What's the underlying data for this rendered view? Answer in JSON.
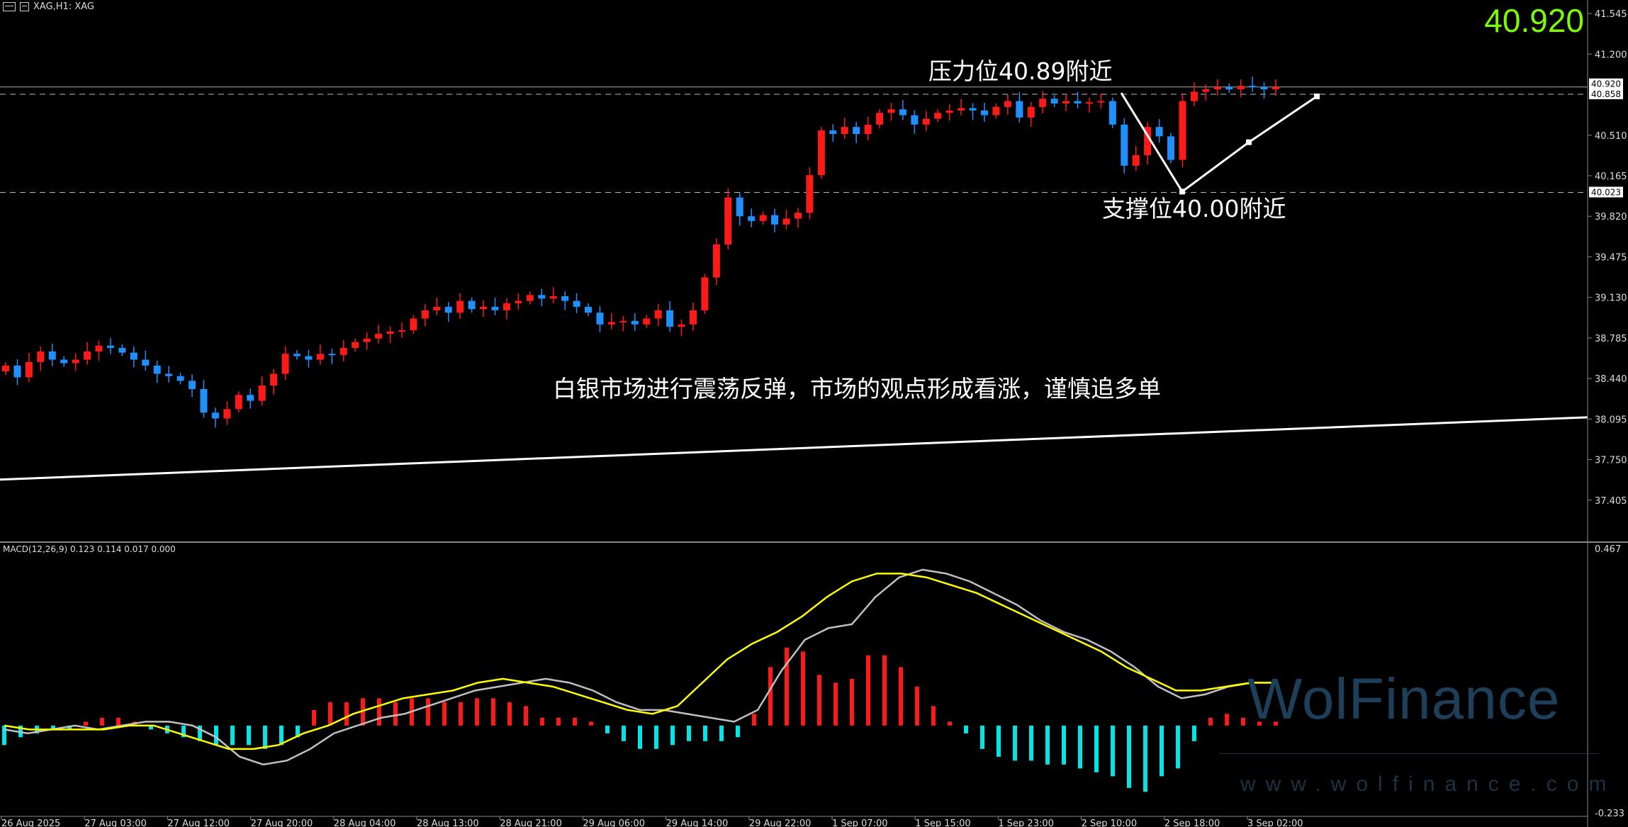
{
  "header": {
    "icon": "chart-window-icon",
    "title": "XAG,H1: XAG"
  },
  "current_price_big": "40.920",
  "annotations": {
    "resistance": "压力位40.89附近",
    "support": "支撑位40.00附近",
    "comment": "白银市场进行震荡反弹，市场的观点形成看涨，谨慎追多单"
  },
  "macd_label": "MACD(12,26,9) 0.123 0.114 0.017 0.000",
  "watermark": {
    "brand": "WolFinance",
    "url": "www.wolfinance.com"
  },
  "colors": {
    "background": "#000000",
    "bull_candle": "#ff1a1a",
    "bear_candle": "#1e90ff",
    "macd_positive": "#ff1a1a",
    "macd_negative": "#00e5e5",
    "macd_line": "#c0c0c0",
    "signal_line": "#ffff00",
    "price_highlight": "#7cfc00"
  },
  "chart_data": [
    {
      "type": "candlestick",
      "symbol": "XAG",
      "timeframe": "H1",
      "ylim": [
        37.06,
        41.66
      ],
      "y_ticks": [
        "41.545",
        "41.200",
        "40.510",
        "40.165",
        "39.820",
        "39.475",
        "39.130",
        "38.785",
        "38.440",
        "38.095",
        "37.750",
        "37.405"
      ],
      "x_ticks": [
        "26 Aug 2025",
        "27 Aug 03:00",
        "27 Aug 12:00",
        "27 Aug 20:00",
        "28 Aug 04:00",
        "28 Aug 13:00",
        "28 Aug 21:00",
        "29 Aug 06:00",
        "29 Aug 14:00",
        "29 Aug 22:00",
        "1 Sep 07:00",
        "1 Sep 15:00",
        "1 Sep 23:00",
        "2 Sep 10:00",
        "2 Sep 18:00",
        "3 Sep 02:00"
      ],
      "price_tags": [
        {
          "text": "40.920",
          "value": 40.92
        },
        {
          "text": "40.858",
          "value": 40.858
        },
        {
          "text": "40.023",
          "value": 40.023
        }
      ],
      "horizontal_levels": [
        40.92,
        40.858,
        40.023
      ],
      "trendline": {
        "start": 37.58,
        "end": 38.11
      },
      "path_projection": [
        40.87,
        40.03,
        40.45,
        40.84
      ],
      "closes": [
        38.55,
        38.45,
        38.58,
        38.67,
        38.6,
        38.57,
        38.6,
        38.67,
        38.72,
        38.7,
        38.66,
        38.6,
        38.55,
        38.48,
        38.46,
        38.42,
        38.35,
        38.15,
        38.1,
        38.18,
        38.3,
        38.25,
        38.38,
        38.48,
        38.65,
        38.63,
        38.6,
        38.65,
        38.64,
        38.7,
        38.75,
        38.78,
        38.82,
        38.84,
        38.85,
        38.95,
        39.02,
        39.05,
        39.0,
        39.1,
        39.03,
        39.05,
        39.02,
        39.08,
        39.1,
        39.15,
        39.12,
        39.14,
        39.1,
        39.05,
        39.0,
        38.9,
        38.92,
        38.93,
        38.9,
        38.95,
        39.02,
        38.88,
        38.9,
        39.02,
        39.3,
        39.58,
        39.98,
        39.82,
        39.78,
        39.83,
        39.75,
        39.8,
        39.85,
        40.17,
        40.55,
        40.52,
        40.58,
        40.52,
        40.6,
        40.7,
        40.73,
        40.68,
        40.6,
        40.65,
        40.7,
        40.72,
        40.74,
        40.72,
        40.68,
        40.75,
        40.8,
        40.66,
        40.75,
        40.82,
        40.78,
        40.8,
        40.78,
        40.79,
        40.8,
        40.6,
        40.25,
        40.34,
        40.58,
        40.5,
        40.3,
        40.8,
        40.88,
        40.9,
        40.92,
        40.9,
        40.93,
        40.92,
        40.9,
        40.92
      ]
    },
    {
      "type": "macd",
      "params": "12,26,9",
      "values": {
        "macd": 0.123,
        "signal": 0.114,
        "histogram": 0.017
      },
      "ylim": [
        -0.233,
        0.467
      ],
      "y_ticks": [
        "0.467",
        "-0.233"
      ],
      "histogram": [
        -0.05,
        -0.03,
        -0.02,
        -0.01,
        -0.01,
        0.01,
        0.02,
        0.02,
        0.01,
        -0.01,
        -0.02,
        -0.03,
        -0.04,
        -0.05,
        -0.05,
        -0.05,
        -0.06,
        -0.05,
        -0.03,
        0.04,
        0.06,
        0.06,
        0.07,
        0.07,
        0.06,
        0.07,
        0.07,
        0.06,
        0.06,
        0.07,
        0.07,
        0.06,
        0.05,
        0.02,
        0.02,
        0.02,
        0.01,
        -0.02,
        -0.04,
        -0.06,
        -0.06,
        -0.05,
        -0.04,
        -0.04,
        -0.04,
        -0.03,
        0.03,
        0.15,
        0.2,
        0.19,
        0.13,
        0.11,
        0.12,
        0.18,
        0.18,
        0.15,
        0.1,
        0.05,
        0.01,
        -0.02,
        -0.06,
        -0.08,
        -0.09,
        -0.09,
        -0.1,
        -0.1,
        -0.11,
        -0.12,
        -0.13,
        -0.16,
        -0.17,
        -0.13,
        -0.11,
        -0.04,
        0.02,
        0.03,
        0.02,
        0.01,
        0.01
      ],
      "macd_line": [
        -0.01,
        -0.02,
        -0.01,
        0.0,
        -0.01,
        0.0,
        0.01,
        0.01,
        0.0,
        -0.03,
        -0.08,
        -0.1,
        -0.09,
        -0.06,
        -0.02,
        0.0,
        0.02,
        0.03,
        0.05,
        0.07,
        0.09,
        0.1,
        0.11,
        0.12,
        0.11,
        0.09,
        0.06,
        0.04,
        0.04,
        0.03,
        0.02,
        0.01,
        0.04,
        0.14,
        0.22,
        0.25,
        0.26,
        0.33,
        0.38,
        0.4,
        0.39,
        0.37,
        0.34,
        0.31,
        0.27,
        0.24,
        0.22,
        0.19,
        0.15,
        0.1,
        0.07,
        0.08,
        0.1,
        0.11,
        0.11
      ],
      "signal_line": [
        0.0,
        -0.01,
        -0.01,
        -0.01,
        -0.01,
        0.0,
        0.0,
        -0.02,
        -0.04,
        -0.06,
        -0.06,
        -0.05,
        -0.02,
        0.0,
        0.03,
        0.05,
        0.07,
        0.08,
        0.09,
        0.11,
        0.12,
        0.11,
        0.1,
        0.08,
        0.06,
        0.04,
        0.03,
        0.05,
        0.11,
        0.17,
        0.21,
        0.24,
        0.28,
        0.33,
        0.37,
        0.39,
        0.39,
        0.38,
        0.36,
        0.34,
        0.31,
        0.28,
        0.25,
        0.22,
        0.19,
        0.15,
        0.12,
        0.09,
        0.09,
        0.1,
        0.11,
        0.11
      ]
    }
  ]
}
